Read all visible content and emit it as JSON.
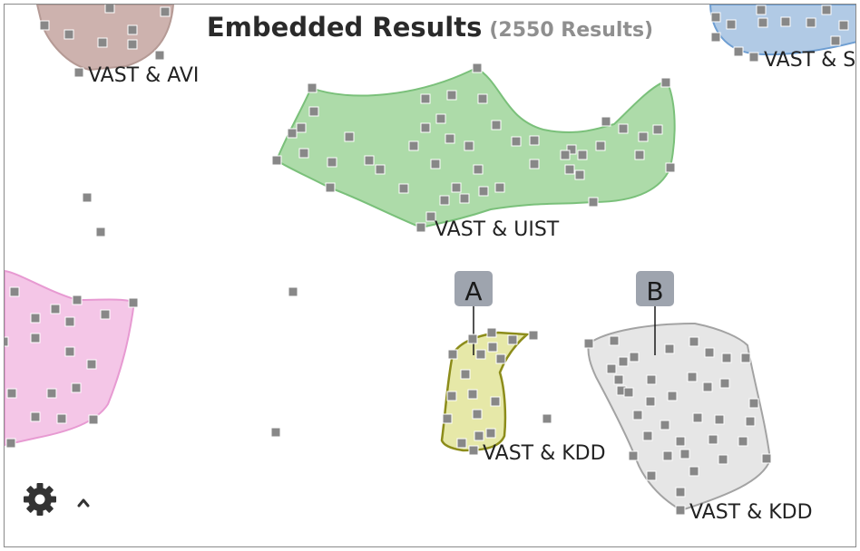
{
  "header": {
    "title": "Embedded Results",
    "subtitle": "(2550 Results)"
  },
  "clusters": [
    {
      "name": "cluster-vast-avi",
      "label": "VAST & AVI",
      "fill": "#c8aaa5",
      "stroke": "#b59a95"
    },
    {
      "name": "cluster-vast-s",
      "label": "VAST & S",
      "fill": "#a8c4e2",
      "stroke": "#6e9ed2"
    },
    {
      "name": "cluster-vast-uist",
      "label": "VAST & UIST",
      "fill": "#a4d7a0",
      "stroke": "#7ac07a"
    },
    {
      "name": "cluster-pink",
      "label": "",
      "fill": "#f3c0e4",
      "stroke": "#e79ad2"
    },
    {
      "name": "cluster-vast-kdd-a",
      "label": "VAST & KDD",
      "fill": "#e3e69e",
      "stroke": "#8c8c1a"
    },
    {
      "name": "cluster-vast-kdd-b",
      "label": "VAST & KDD",
      "fill": "#e3e3e3",
      "stroke": "#a3a3a3"
    }
  ],
  "markers": [
    {
      "name": "marker-a",
      "text": "A"
    },
    {
      "name": "marker-b",
      "text": "B"
    }
  ],
  "colors": {
    "point": "#888888",
    "marker_bg": "#9ea4ae"
  },
  "controls": {
    "settings_icon": "gear-icon",
    "expand_icon": "chevron-up-icon"
  }
}
